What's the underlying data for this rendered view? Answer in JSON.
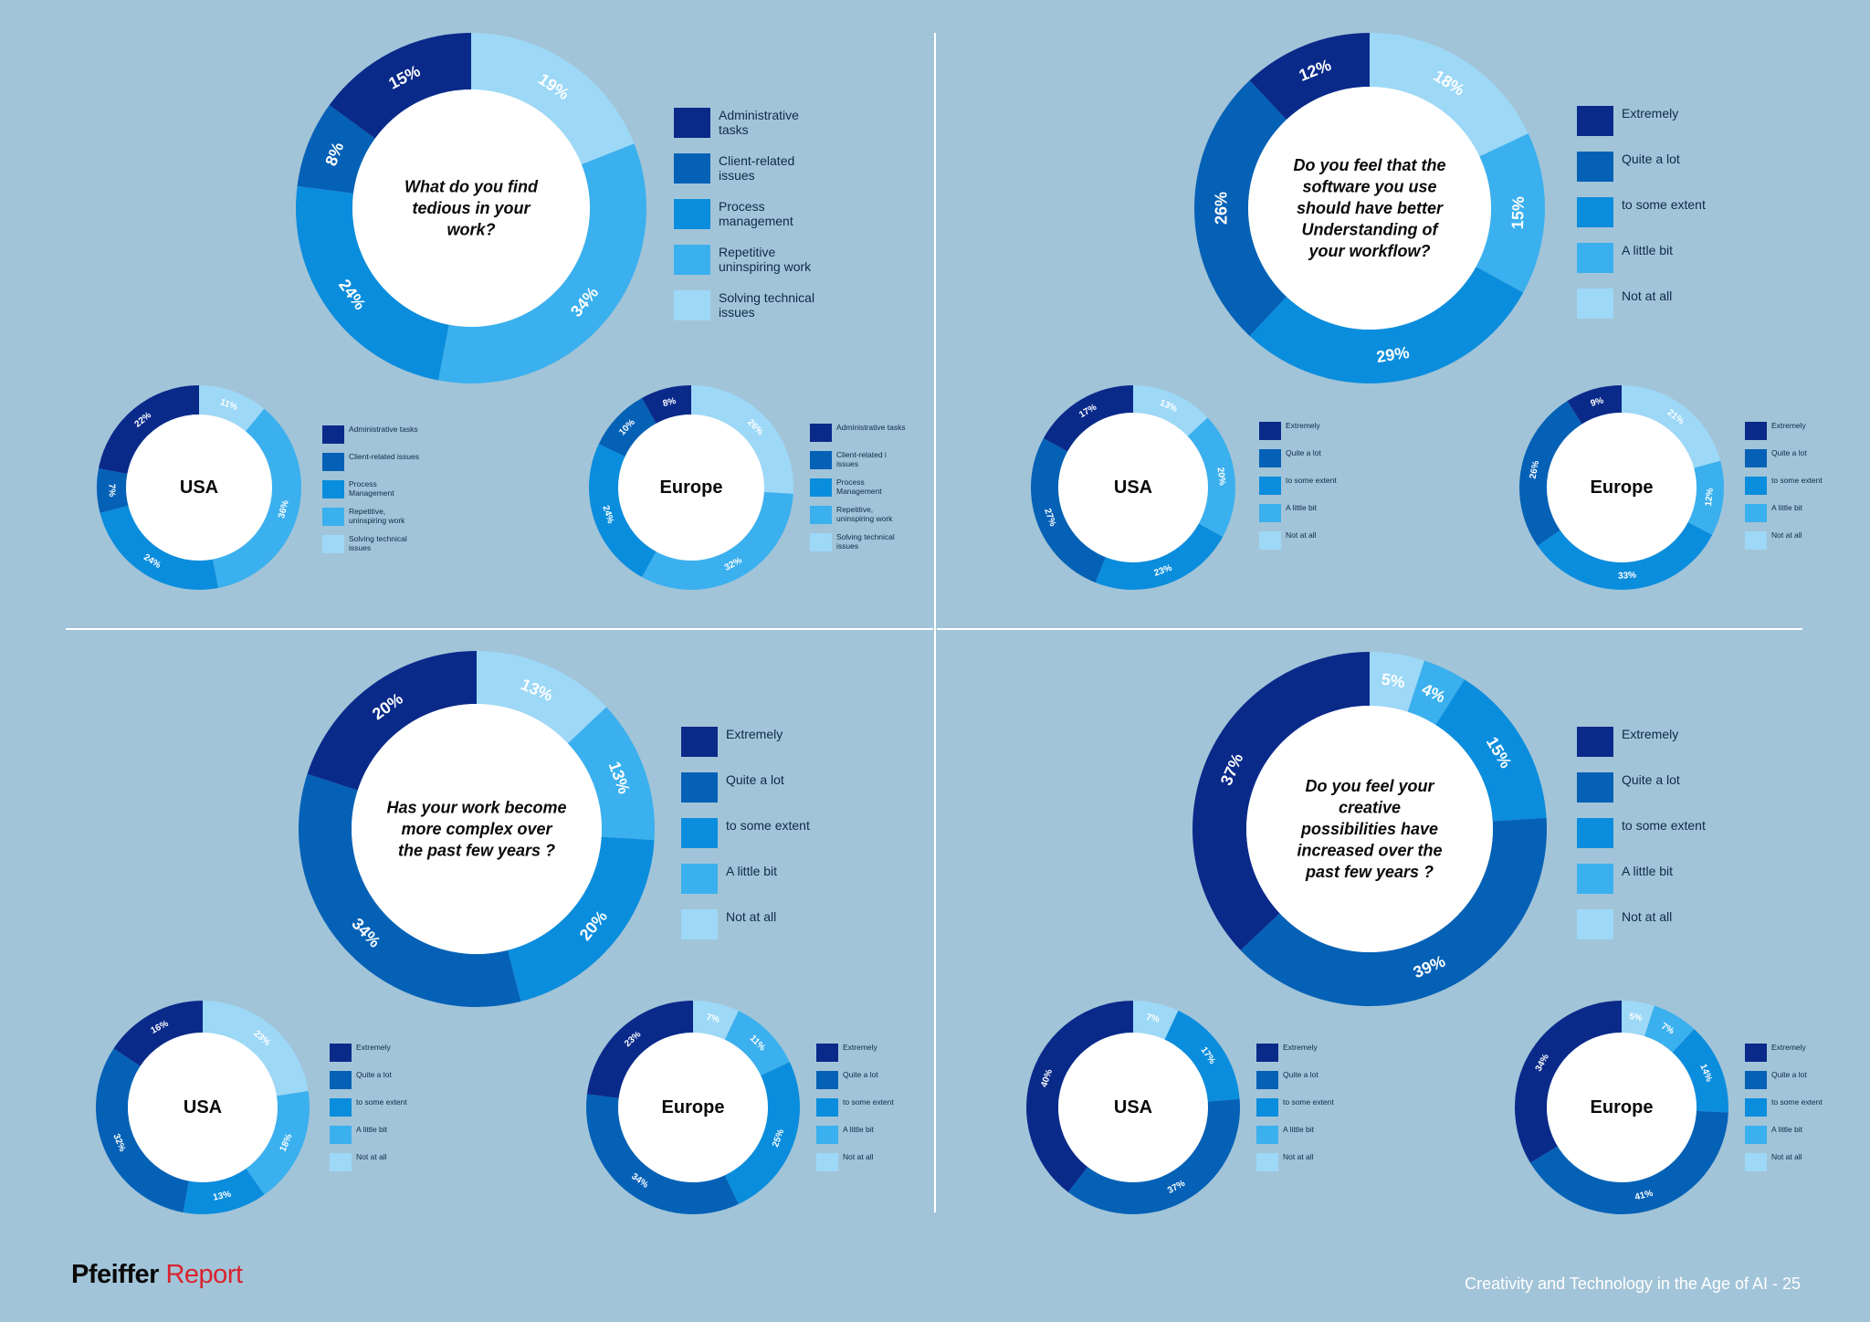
{
  "colors": [
    "#0a2a8a",
    "#0561b6",
    "#0b8ddd",
    "#3bb0ee",
    "#9dd8f7"
  ],
  "legends": {
    "tedious": [
      "Administrative tasks",
      "Client-related issues",
      "Process management",
      "Repetitive uninspiring work",
      "Solving technical issues"
    ],
    "tedious_usa": [
      "Administrative tasks",
      "Client-related issues",
      "Process Management",
      "Repetitive, uninspiring work",
      "Solving technical issues"
    ],
    "tedious_europe": [
      "Administrative tasks",
      "Client-related i issues",
      "Process Management",
      "Repetitive, uninspiring work",
      "Solving technical issues"
    ],
    "scale": [
      "Extremely",
      "Quite a lot",
      "to some extent",
      "A little bit",
      "Not at all"
    ]
  },
  "chart_data": [
    {
      "type": "pie",
      "id": "q1",
      "title": "What do you find tedious in your work?",
      "legend": "tedious",
      "values": [
        15,
        8,
        24,
        34,
        19
      ],
      "labels": [
        "15%",
        "8%",
        "24%",
        "34%",
        "19%"
      ]
    },
    {
      "type": "pie",
      "id": "q1-usa",
      "title": "USA",
      "legend": "tedious_usa",
      "values": [
        22,
        7,
        24,
        36,
        11
      ],
      "labels": [
        "22%",
        "7%",
        "24%",
        "36%",
        "11%"
      ]
    },
    {
      "type": "pie",
      "id": "q1-europe",
      "title": "Europe",
      "legend": "tedious_europe",
      "values": [
        8,
        10,
        24,
        32,
        26
      ],
      "labels": [
        "8%",
        "10%",
        "24%",
        "32%",
        "26%"
      ]
    },
    {
      "type": "pie",
      "id": "q2",
      "title": "Do you feel that the software you use should have better Understanding of your workflow?",
      "legend": "scale",
      "values": [
        12,
        26,
        29,
        15,
        18
      ],
      "labels": [
        "12%",
        "26%",
        "29%",
        "15%",
        "18%"
      ]
    },
    {
      "type": "pie",
      "id": "q2-usa",
      "title": "USA",
      "legend": "scale",
      "values": [
        17,
        27,
        23,
        20,
        13
      ],
      "labels": [
        "17%",
        "27%",
        "23%",
        "20%",
        "13%"
      ]
    },
    {
      "type": "pie",
      "id": "q2-europe",
      "title": "Europe",
      "legend": "scale",
      "values": [
        9,
        26,
        33,
        12,
        21
      ],
      "labels": [
        "9%",
        "26%",
        "33%",
        "12%",
        "21%"
      ]
    },
    {
      "type": "pie",
      "id": "q3",
      "title": "Has your work become more complex over the past few years ?",
      "legend": "scale",
      "values": [
        20,
        34,
        20,
        13,
        13
      ],
      "labels": [
        "20%",
        "34%",
        "20%",
        "13%",
        "13%"
      ]
    },
    {
      "type": "pie",
      "id": "q3-usa",
      "title": "USA",
      "legend": "scale",
      "values": [
        16,
        32,
        13,
        18,
        23
      ],
      "labels": [
        "16%",
        "32%",
        "13%",
        "18%",
        "23%"
      ]
    },
    {
      "type": "pie",
      "id": "q3-europe",
      "title": "Europe",
      "legend": "scale",
      "values": [
        23,
        34,
        25,
        11,
        7
      ],
      "labels": [
        "23%",
        "34%",
        "25%",
        "11%",
        "7%"
      ]
    },
    {
      "type": "pie",
      "id": "q4",
      "title": "Do you feel your creative possibilities have increased over the past few years ?",
      "legend": "scale",
      "values": [
        37,
        39,
        15,
        4,
        5
      ],
      "labels": [
        "37%",
        "39%",
        "15%",
        "4%",
        "5%"
      ]
    },
    {
      "type": "pie",
      "id": "q4-usa",
      "title": "USA",
      "legend": "scale",
      "values": [
        40,
        37,
        17,
        0,
        7
      ],
      "labels": [
        "40%",
        "37%",
        "17%",
        "",
        "7%"
      ]
    },
    {
      "type": "pie",
      "id": "q4-europe",
      "title": "Europe",
      "legend": "scale",
      "values": [
        34,
        41,
        14,
        7,
        5
      ],
      "labels": [
        "34%",
        "41%",
        "14%",
        "7%",
        "5%"
      ]
    }
  ],
  "footer": {
    "brand_a": "Pfeiffer",
    "brand_b": "Report",
    "page": "Creativity and Technology in the Age of AI - 25"
  }
}
